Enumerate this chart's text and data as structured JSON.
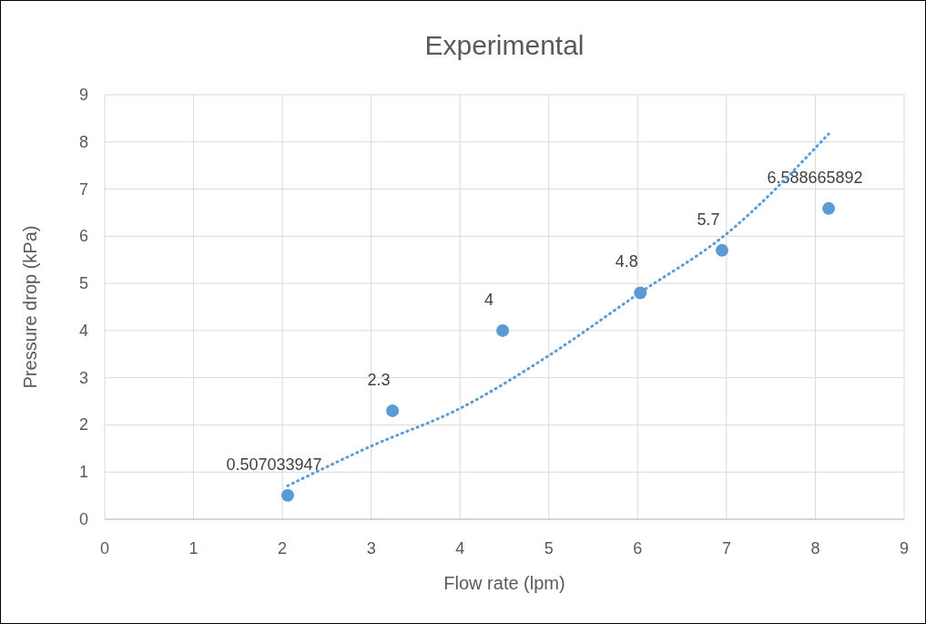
{
  "chart_data": {
    "type": "scatter",
    "title": "Experimental",
    "xlabel": "Flow rate (lpm)",
    "ylabel": "Pressure drop (kPa)",
    "xlim": [
      0,
      9
    ],
    "xticks": [
      0,
      1,
      2,
      3,
      4,
      5,
      6,
      7,
      8,
      9
    ],
    "ylim": [
      0,
      9
    ],
    "yticks": [
      0,
      1,
      2,
      3,
      4,
      5,
      6,
      7,
      8,
      9
    ],
    "grid": true,
    "series": [
      {
        "color": "#5b9bd5",
        "marker": "circle",
        "x": [
          2.06,
          3.24,
          4.48,
          6.03,
          6.95,
          8.15
        ],
        "values": [
          0.507033947,
          2.3,
          4,
          4.8,
          5.7,
          6.588665892
        ],
        "value_labels": [
          "0.507033947",
          "2.3",
          "4",
          "4.8",
          "5.7",
          "6.588665892"
        ]
      },
      {
        "type": "line",
        "color": "#5b9bd5",
        "line_style": "dotted",
        "x": [
          2.06,
          3,
          4,
          5,
          6,
          7,
          8.15
        ],
        "values": [
          0.71,
          1.55,
          2.35,
          3.47,
          4.77,
          6.05,
          8.17
        ]
      }
    ]
  }
}
